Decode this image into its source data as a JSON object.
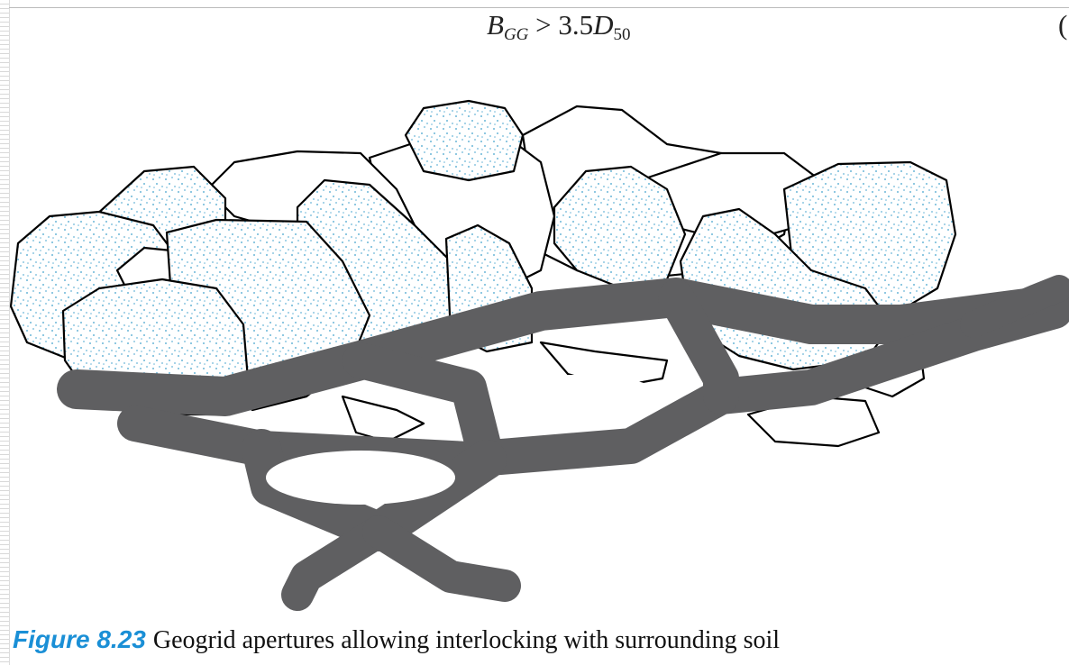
{
  "equation": {
    "lhs": "B",
    "lhs_sub": "GG",
    "operator": ">",
    "coefficient": "3.5",
    "rhs": "D",
    "rhs_sub": "50"
  },
  "equation_number_fragment": "(",
  "figure": {
    "label": "Figure 8.23",
    "caption": "Geogrid apertures allowing interlocking with surrounding soil"
  }
}
